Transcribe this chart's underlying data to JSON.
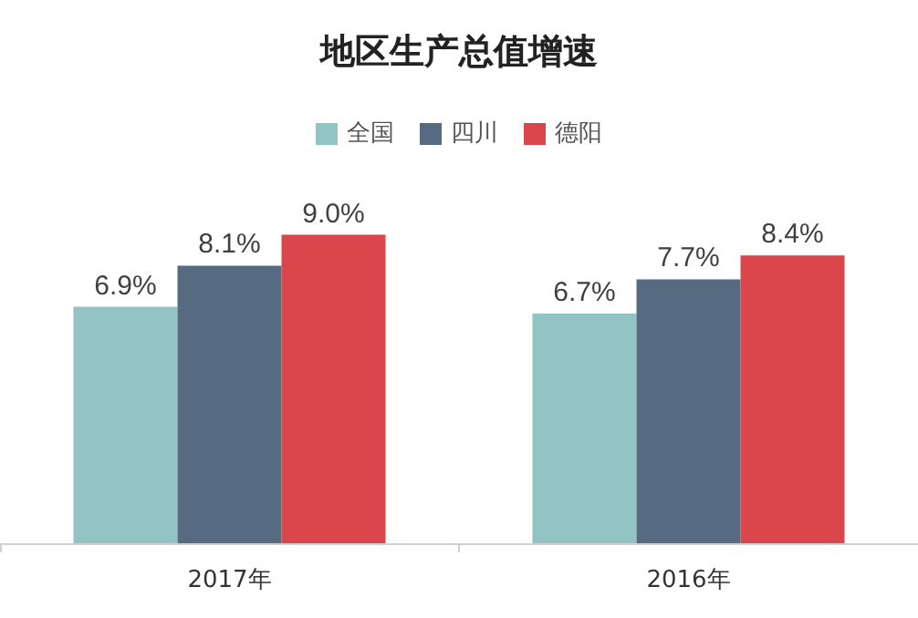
{
  "chart_data": {
    "type": "bar",
    "title": "地区生产总值增速",
    "categories": [
      "2017年",
      "2016年"
    ],
    "series": [
      {
        "name": "全国",
        "color": "#93c4c4",
        "values": [
          6.9,
          6.7
        ],
        "value_labels": [
          "6.9%",
          "6.7%"
        ]
      },
      {
        "name": "四川",
        "color": "#566b82",
        "values": [
          8.1,
          7.7
        ],
        "value_labels": [
          "8.1%",
          "7.7%"
        ]
      },
      {
        "name": "德阳",
        "color": "#d9464b",
        "values": [
          9.0,
          8.4
        ],
        "value_labels": [
          "9.0%",
          "8.4%"
        ]
      }
    ],
    "legend": "top",
    "tick_labels": "x"
  }
}
